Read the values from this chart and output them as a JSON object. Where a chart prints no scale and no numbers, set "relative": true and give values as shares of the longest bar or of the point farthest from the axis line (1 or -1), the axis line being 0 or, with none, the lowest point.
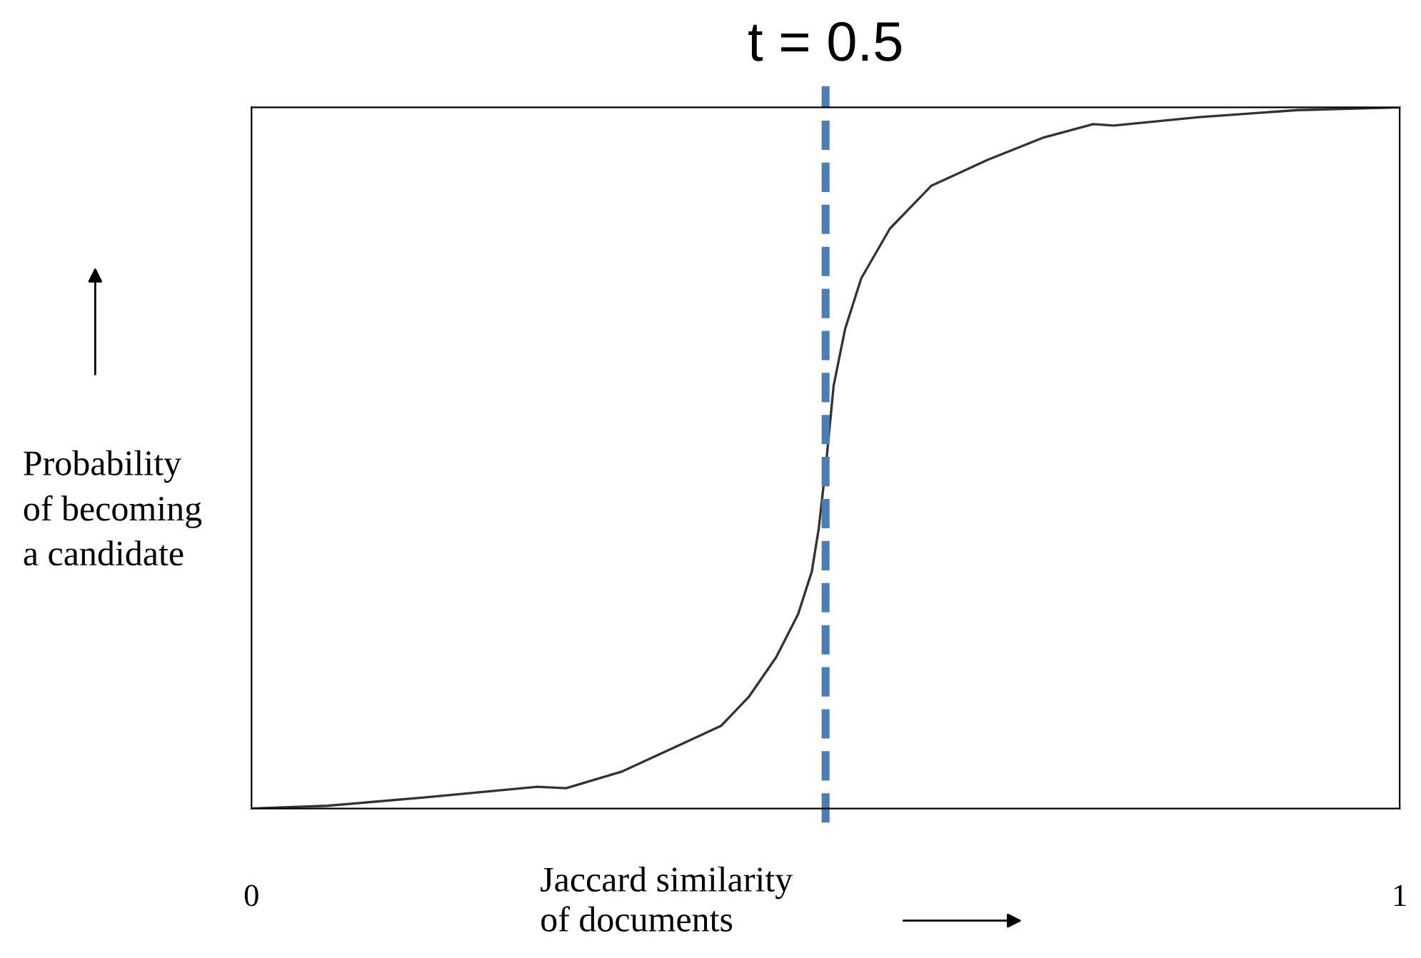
{
  "chart_data": {
    "type": "line",
    "relative": true,
    "xlabel": "Jaccard similarity\nof documents",
    "ylabel": "Probability\nof becoming\na candidate",
    "xlim": [
      0,
      1
    ],
    "xticks": [
      0,
      1
    ],
    "grid": false,
    "marker": "none",
    "line_style": "solid",
    "x": [
      0,
      0.066,
      0.152,
      0.249,
      0.274,
      0.323,
      0.372,
      0.409,
      0.433,
      0.457,
      0.476,
      0.488,
      0.494,
      0.501,
      0.507,
      0.517,
      0.531,
      0.556,
      0.592,
      0.641,
      0.69,
      0.733,
      0.751,
      0.825,
      0.911,
      1.0
    ],
    "series": [
      {
        "color": "#333333",
        "values": [
          0,
          0.004,
          0.016,
          0.031,
          0.029,
          0.053,
          0.09,
          0.118,
          0.159,
          0.216,
          0.277,
          0.338,
          0.399,
          0.501,
          0.603,
          0.684,
          0.756,
          0.827,
          0.888,
          0.925,
          0.957,
          0.976,
          0.974,
          0.986,
          0.996,
          1.0
        ]
      }
    ],
    "ref_lines": [
      {
        "axis": "x",
        "value": 0.5,
        "label": "t = 0.5",
        "color": "#4a7ebb",
        "line_style": "dashed"
      }
    ]
  }
}
